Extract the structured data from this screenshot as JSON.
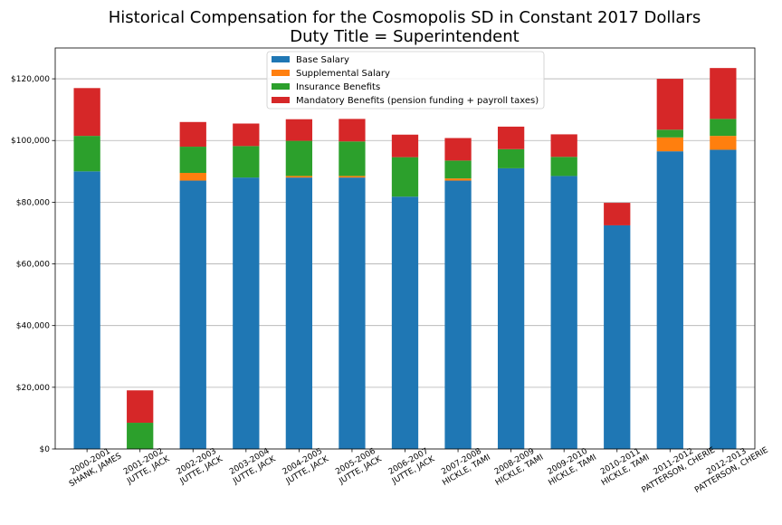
{
  "chart_data": {
    "type": "bar",
    "stacked": true,
    "title": "Historical Compensation for the Cosmopolis SD in Constant 2017 Dollars",
    "subtitle": "Duty Title = Superintendent",
    "xlabel": "",
    "ylabel": "",
    "ylim": [
      0,
      130000
    ],
    "yticks": [
      0,
      20000,
      40000,
      60000,
      80000,
      100000,
      120000
    ],
    "ytick_labels": [
      "$0",
      "$20,000",
      "$40,000",
      "$60,000",
      "$80,000",
      "$100,000",
      "$120,000"
    ],
    "grid": "horizontal",
    "legend_position": "top-center",
    "categories": [
      "2000-2001\nSHANK, JAMES",
      "2001-2002\nJUTTE, JACK",
      "2002-2003\nJUTTE, JACK",
      "2003-2004\nJUTTE, JACK",
      "2004-2005\nJUTTE, JACK",
      "2005-2006\nJUTTE, JACK",
      "2006-2007\nJUTTE, JACK",
      "2007-2008\nHICKLE, TAMI",
      "2008-2009\nHICKLE, TAMI",
      "2009-2010\nHICKLE, TAMI",
      "2010-2011\nHICKLE, TAMI",
      "2011-2012\nPATTERSON, CHERIE",
      "2012-2013\nPATTERSON, CHERIE"
    ],
    "series": [
      {
        "name": "Base Salary",
        "color": "#1f77b4",
        "values": [
          90000,
          0,
          87000,
          88000,
          88000,
          88000,
          81800,
          87000,
          91000,
          88500,
          72500,
          96500,
          97000
        ]
      },
      {
        "name": "Supplemental Salary",
        "color": "#ff7f0e",
        "values": [
          0,
          0,
          2500,
          0,
          500,
          500,
          0,
          700,
          0,
          0,
          0,
          4500,
          4500
        ]
      },
      {
        "name": "Insurance Benefits",
        "color": "#2ca02c",
        "values": [
          11500,
          8500,
          8500,
          10200,
          11400,
          11200,
          12800,
          5800,
          6200,
          6200,
          0,
          2500,
          5500
        ]
      },
      {
        "name": "Mandatory Benefits (pension funding + payroll taxes)",
        "color": "#d62728",
        "values": [
          15500,
          10500,
          8000,
          7300,
          7000,
          7300,
          7300,
          7300,
          7300,
          7300,
          7300,
          16500,
          16500
        ]
      }
    ]
  }
}
